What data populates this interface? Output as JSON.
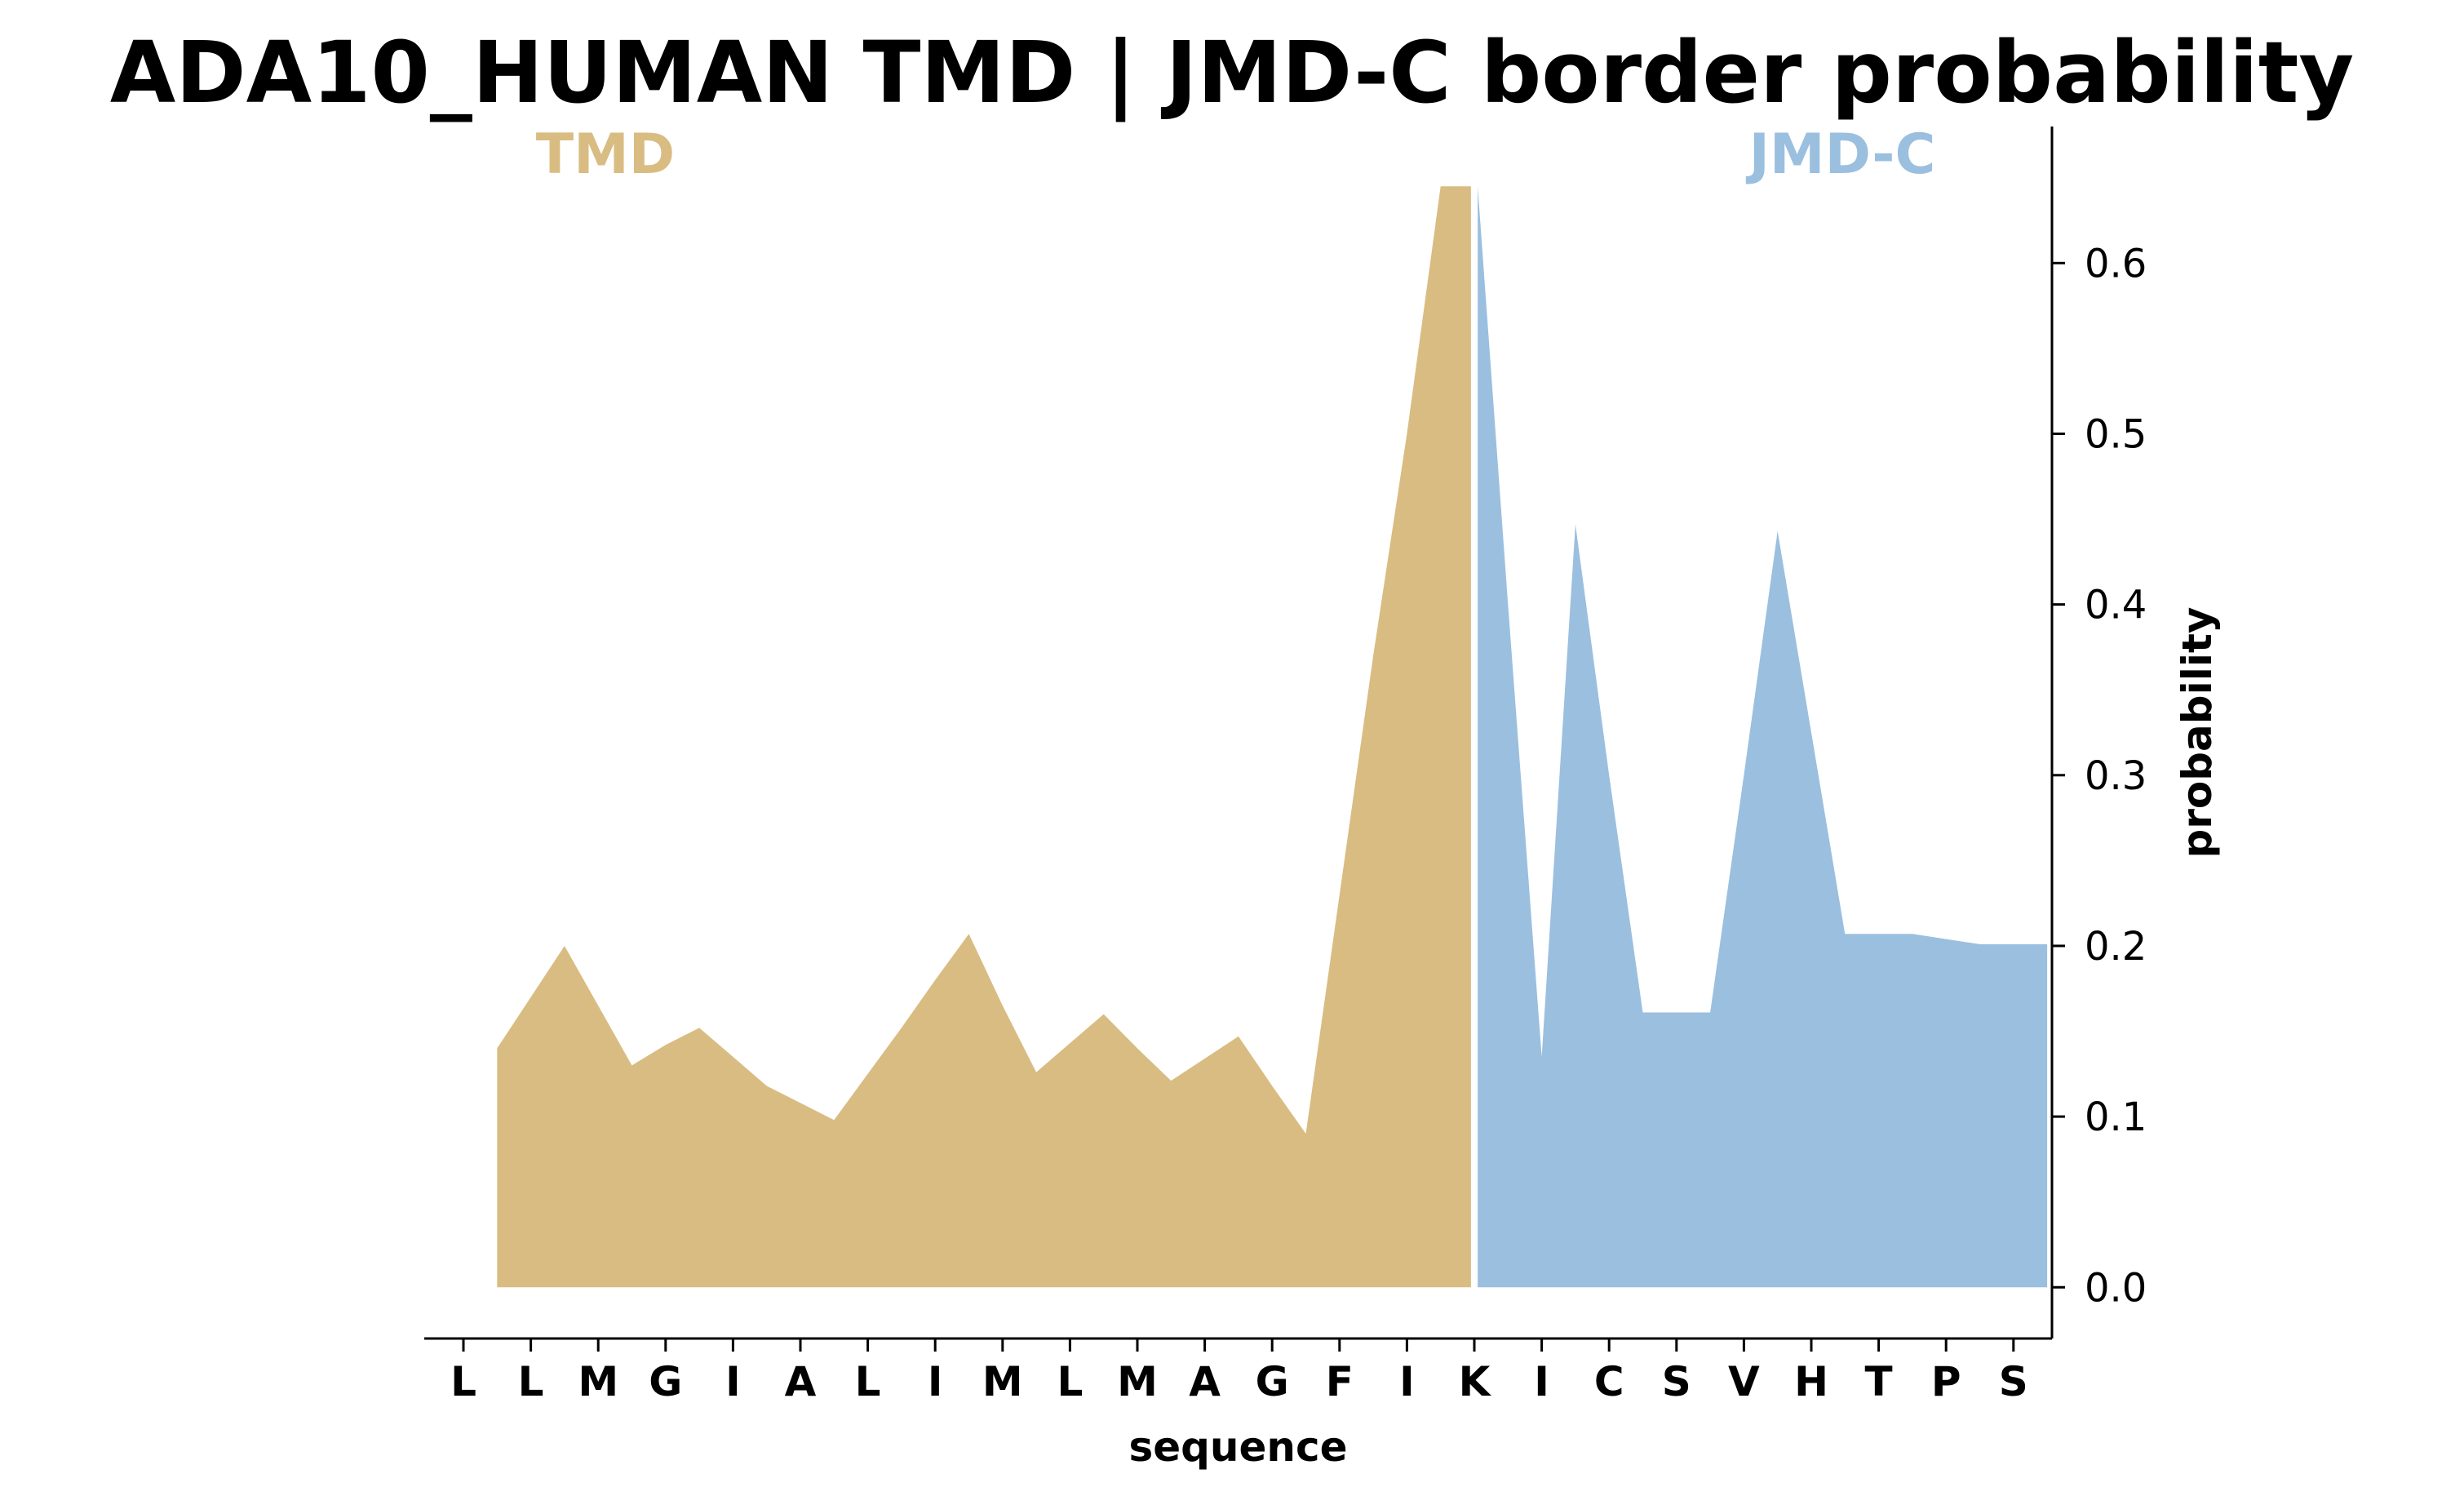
{
  "chart_data": {
    "type": "area",
    "title": "ADA10_HUMAN TMD | JMD-C border probability",
    "xlabel": "sequence",
    "ylabel": "probability",
    "categories": [
      "L",
      "L",
      "M",
      "G",
      "I",
      "A",
      "L",
      "I",
      "M",
      "L",
      "M",
      "A",
      "G",
      "F",
      "I",
      "K",
      "I",
      "C",
      "S",
      "V",
      "H",
      "T",
      "P",
      "S"
    ],
    "yticks": [
      "0.0",
      "0.1",
      "0.2",
      "0.3",
      "0.4",
      "0.5",
      "0.6"
    ],
    "ylim": [
      -0.03,
      0.68
    ],
    "grid": false,
    "border_position": 15,
    "regions": [
      {
        "name": "TMD",
        "color": "#d9bc82",
        "label_align": "left"
      },
      {
        "name": "JMD-C",
        "color": "#9bbfdf",
        "label_align": "right"
      }
    ],
    "series": [
      {
        "name": "TMD",
        "color": "#d9bc82",
        "x": [
          0.5,
          1.0,
          1.5,
          2.0,
          2.5,
          3.0,
          3.5,
          4.0,
          4.5,
          5.0,
          5.5,
          6.0,
          6.5,
          7.0,
          7.5,
          8.0,
          8.5,
          9.0,
          9.5,
          10.0,
          10.5,
          11.0,
          11.5,
          12.0,
          12.5,
          13.0,
          13.5,
          14.0,
          14.5,
          14.95
        ],
        "y": [
          0.14,
          0.17,
          0.2,
          0.165,
          0.13,
          0.142,
          0.152,
          0.135,
          0.118,
          0.108,
          0.098,
          0.125,
          0.152,
          0.18,
          0.207,
          0.165,
          0.126,
          0.143,
          0.16,
          0.14,
          0.121,
          0.134,
          0.147,
          0.118,
          0.09,
          0.23,
          0.37,
          0.5,
          0.645,
          0.645
        ]
      },
      {
        "name": "JMD-C",
        "color": "#9bbfdf",
        "x": [
          15.05,
          15.5,
          16.0,
          16.5,
          17.0,
          17.5,
          18.0,
          18.5,
          19.0,
          19.5,
          20.0,
          20.5,
          21.0,
          21.5,
          22.0,
          22.5,
          23.0,
          23.5
        ],
        "y": [
          0.645,
          0.4,
          0.135,
          0.447,
          0.3,
          0.161,
          0.161,
          0.161,
          0.3,
          0.443,
          0.325,
          0.207,
          0.207,
          0.207,
          0.204,
          0.201,
          0.201,
          0.201
        ]
      }
    ]
  }
}
